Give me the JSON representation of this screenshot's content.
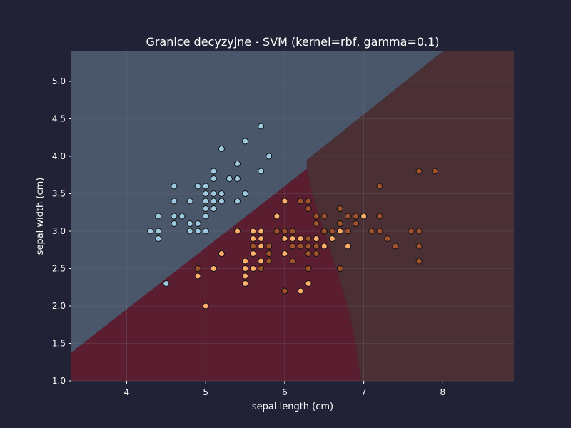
{
  "colors": {
    "figure_bg": "#222236",
    "region_setosa": "#4a5669",
    "region_versicolor": "#5a1e30",
    "region_virginica": "#4a2f34",
    "point_setosa": "#9ecae1",
    "point_versicolor": "#fdae6b",
    "point_virginica": "#a0522d",
    "point_edge": "#111111",
    "grid": "#7a7a8a",
    "text": "#ffffff"
  },
  "chart_data": {
    "type": "scatter",
    "title": "Granice decyzyjne - SVM (kernel=rbf, gamma=0.1)",
    "xlabel": "sepal length (cm)",
    "ylabel": "sepal width (cm)",
    "xlim": [
      3.3,
      8.9
    ],
    "ylim": [
      1.0,
      5.4
    ],
    "xticks": [
      4,
      5,
      6,
      7,
      8
    ],
    "yticks": [
      1.0,
      1.5,
      2.0,
      2.5,
      3.0,
      3.5,
      4.0,
      4.5,
      5.0
    ],
    "grid": true,
    "legend": "none",
    "regions": [
      {
        "class": "setosa",
        "color_key": "region_setosa",
        "polygon": [
          [
            3.3,
            1.38
          ],
          [
            6.28,
            3.83
          ],
          [
            6.28,
            3.95
          ],
          [
            8.0,
            5.4
          ],
          [
            3.3,
            5.4
          ]
        ]
      },
      {
        "class": "versicolor",
        "color_key": "region_versicolor",
        "polygon": [
          [
            3.3,
            1.0
          ],
          [
            3.3,
            1.38
          ],
          [
            6.28,
            3.83
          ],
          [
            6.35,
            3.5
          ],
          [
            6.5,
            3.0
          ],
          [
            6.65,
            2.5
          ],
          [
            6.8,
            2.0
          ],
          [
            6.9,
            1.5
          ],
          [
            6.97,
            1.0
          ]
        ]
      },
      {
        "class": "virginica",
        "color_key": "region_virginica",
        "polygon": [
          [
            6.97,
            1.0
          ],
          [
            6.9,
            1.5
          ],
          [
            6.8,
            2.0
          ],
          [
            6.65,
            2.5
          ],
          [
            6.5,
            3.0
          ],
          [
            6.35,
            3.5
          ],
          [
            6.28,
            3.83
          ],
          [
            6.28,
            3.95
          ],
          [
            8.0,
            5.4
          ],
          [
            8.9,
            5.4
          ],
          [
            8.9,
            1.0
          ]
        ]
      }
    ],
    "series": [
      {
        "class": "setosa",
        "color_key": "point_setosa",
        "points": [
          [
            5.1,
            3.5
          ],
          [
            4.9,
            3.0
          ],
          [
            4.7,
            3.2
          ],
          [
            4.6,
            3.1
          ],
          [
            5.0,
            3.6
          ],
          [
            5.4,
            3.9
          ],
          [
            4.6,
            3.4
          ],
          [
            5.0,
            3.4
          ],
          [
            4.4,
            2.9
          ],
          [
            4.9,
            3.1
          ],
          [
            5.4,
            3.7
          ],
          [
            4.8,
            3.4
          ],
          [
            4.8,
            3.0
          ],
          [
            4.3,
            3.0
          ],
          [
            5.8,
            4.0
          ],
          [
            5.7,
            4.4
          ],
          [
            5.1,
            3.8
          ],
          [
            5.7,
            3.8
          ],
          [
            5.1,
            3.7
          ],
          [
            4.6,
            3.6
          ],
          [
            5.1,
            3.3
          ],
          [
            4.8,
            3.1
          ],
          [
            5.2,
            3.5
          ],
          [
            5.2,
            3.4
          ],
          [
            4.7,
            3.2
          ],
          [
            5.4,
            3.4
          ],
          [
            5.2,
            4.1
          ],
          [
            5.5,
            4.2
          ],
          [
            5.0,
            3.2
          ],
          [
            5.5,
            3.5
          ],
          [
            4.4,
            3.0
          ],
          [
            5.1,
            3.4
          ],
          [
            5.0,
            3.5
          ],
          [
            4.5,
            2.3
          ],
          [
            4.4,
            3.2
          ],
          [
            5.0,
            3.3
          ],
          [
            5.3,
            3.7
          ],
          [
            4.9,
            3.6
          ],
          [
            5.0,
            3.0
          ],
          [
            4.6,
            3.2
          ]
        ]
      },
      {
        "class": "versicolor",
        "color_key": "point_versicolor",
        "points": [
          [
            7.0,
            3.2
          ],
          [
            6.4,
            3.2
          ],
          [
            6.9,
            3.1
          ],
          [
            5.5,
            2.3
          ],
          [
            6.5,
            2.8
          ],
          [
            5.7,
            2.8
          ],
          [
            4.9,
            2.4
          ],
          [
            6.6,
            2.9
          ],
          [
            5.2,
            2.7
          ],
          [
            5.0,
            2.0
          ],
          [
            5.9,
            3.0
          ],
          [
            6.0,
            2.2
          ],
          [
            6.1,
            2.9
          ],
          [
            5.6,
            2.9
          ],
          [
            6.7,
            3.1
          ],
          [
            5.6,
            3.0
          ],
          [
            5.8,
            2.7
          ],
          [
            6.2,
            2.2
          ],
          [
            5.6,
            2.5
          ],
          [
            5.9,
            3.2
          ],
          [
            6.1,
            2.8
          ],
          [
            6.3,
            2.5
          ],
          [
            6.4,
            2.9
          ],
          [
            6.6,
            3.0
          ],
          [
            6.8,
            2.8
          ],
          [
            6.0,
            2.9
          ],
          [
            5.7,
            2.6
          ],
          [
            5.5,
            2.4
          ],
          [
            5.8,
            2.7
          ],
          [
            6.0,
            2.7
          ],
          [
            5.4,
            3.0
          ],
          [
            6.0,
            3.4
          ],
          [
            6.7,
            3.1
          ],
          [
            6.3,
            2.3
          ],
          [
            5.5,
            2.5
          ],
          [
            5.5,
            2.6
          ],
          [
            5.1,
            2.5
          ],
          [
            5.7,
            3.0
          ],
          [
            5.7,
            2.9
          ],
          [
            6.2,
            2.9
          ],
          [
            5.7,
            2.8
          ],
          [
            6.3,
            3.3
          ],
          [
            6.7,
            3.0
          ],
          [
            6.9,
            3.1
          ],
          [
            5.6,
            2.7
          ],
          [
            6.5,
            3.0
          ],
          [
            6.2,
            3.4
          ]
        ]
      },
      {
        "class": "virginica",
        "color_key": "point_virginica",
        "points": [
          [
            6.3,
            3.3
          ],
          [
            7.1,
            3.0
          ],
          [
            6.5,
            3.0
          ],
          [
            7.6,
            3.0
          ],
          [
            4.9,
            2.5
          ],
          [
            7.3,
            2.9
          ],
          [
            6.7,
            2.5
          ],
          [
            7.2,
            3.6
          ],
          [
            6.4,
            2.7
          ],
          [
            6.8,
            3.0
          ],
          [
            5.7,
            2.5
          ],
          [
            5.8,
            2.8
          ],
          [
            6.4,
            3.2
          ],
          [
            7.7,
            3.8
          ],
          [
            7.7,
            2.6
          ],
          [
            6.0,
            2.2
          ],
          [
            6.9,
            3.2
          ],
          [
            5.6,
            2.8
          ],
          [
            7.7,
            2.8
          ],
          [
            6.3,
            2.7
          ],
          [
            6.7,
            3.3
          ],
          [
            7.2,
            3.2
          ],
          [
            6.2,
            2.8
          ],
          [
            6.1,
            3.0
          ],
          [
            7.2,
            3.0
          ],
          [
            7.4,
            2.8
          ],
          [
            7.9,
            3.8
          ],
          [
            6.3,
            2.8
          ],
          [
            6.1,
            2.6
          ],
          [
            7.7,
            3.0
          ],
          [
            6.3,
            3.4
          ],
          [
            6.4,
            3.1
          ],
          [
            6.0,
            3.0
          ],
          [
            6.9,
            3.1
          ],
          [
            6.7,
            3.1
          ],
          [
            5.8,
            2.7
          ],
          [
            6.8,
            3.2
          ],
          [
            6.7,
            3.3
          ],
          [
            6.5,
            3.0
          ],
          [
            6.2,
            3.4
          ],
          [
            5.9,
            3.0
          ],
          [
            6.3,
            2.9
          ],
          [
            6.6,
            3.0
          ],
          [
            5.8,
            2.6
          ],
          [
            7.2,
            3.2
          ],
          [
            6.5,
            3.2
          ],
          [
            6.3,
            2.5
          ],
          [
            6.4,
            2.8
          ],
          [
            6.1,
            2.8
          ],
          [
            6.0,
            2.2
          ]
        ]
      }
    ]
  }
}
